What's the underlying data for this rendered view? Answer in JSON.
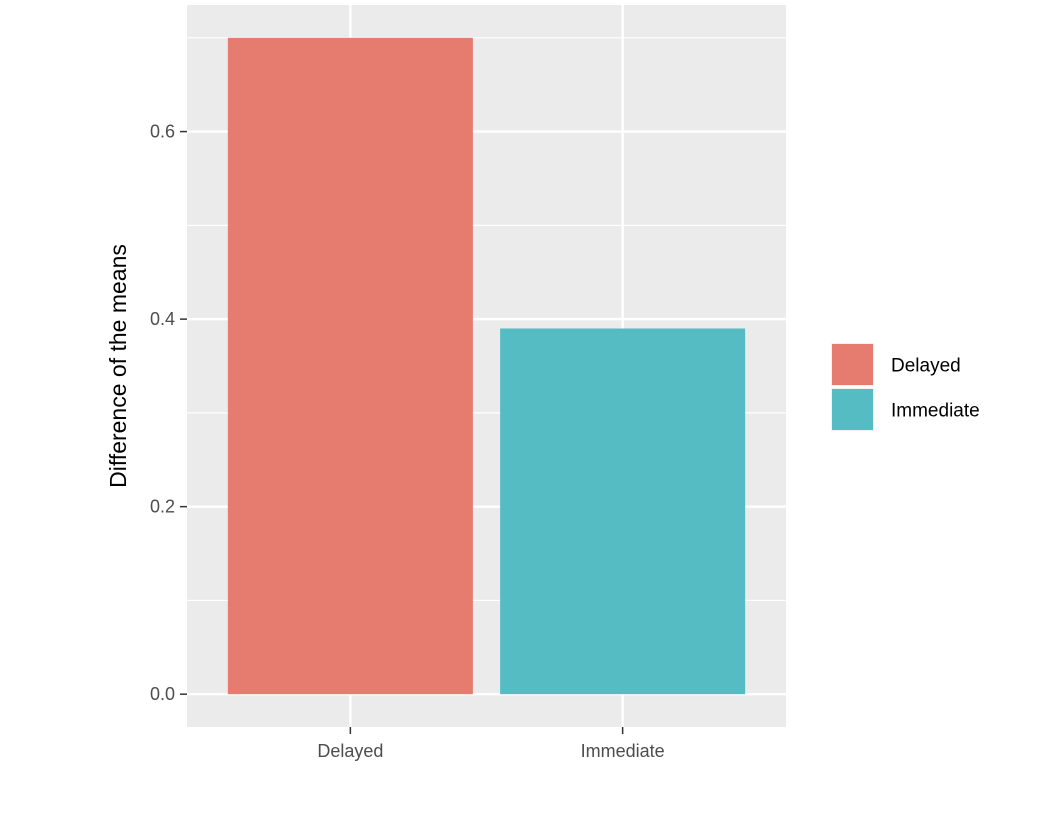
{
  "chart_data": {
    "type": "bar",
    "title": "",
    "xlabel": "",
    "ylabel": "Difference of the means",
    "categories": [
      "Delayed",
      "Immediate"
    ],
    "values": [
      0.7,
      0.39
    ],
    "colors": [
      "#e67c6f",
      "#56bcc4"
    ],
    "ylim": [
      -0.035,
      0.735
    ],
    "yticks": [
      0.0,
      0.2,
      0.4,
      0.6
    ],
    "ytick_labels": [
      "0.0",
      "0.2",
      "0.4",
      "0.6"
    ],
    "grid": true,
    "panel_background": "#ebebeb",
    "grid_color": "#ffffff",
    "legend": {
      "position": "right",
      "entries": [
        {
          "label": "Delayed",
          "color": "#e67c6f"
        },
        {
          "label": "Immediate",
          "color": "#56bcc4"
        }
      ]
    }
  }
}
